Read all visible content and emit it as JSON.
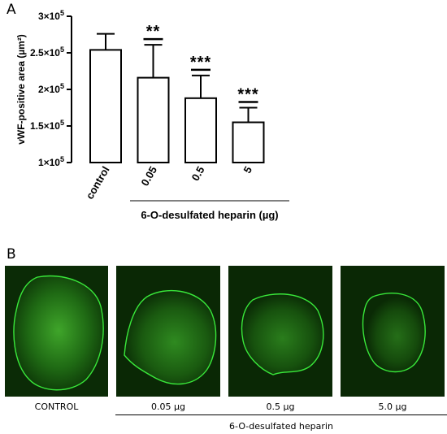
{
  "panel_a_label": "A",
  "panel_b_label": "B",
  "chart_data": {
    "type": "bar",
    "ylabel": "vWF-positive area (µm²)",
    "xlabel": "6-O-desulfated heparin (µg)",
    "categories": [
      "control",
      "0.05",
      "0.5",
      "5"
    ],
    "values": [
      254000,
      216000,
      188000,
      155000
    ],
    "error_upper": [
      276000,
      261000,
      219000,
      175000
    ],
    "significance": [
      "",
      "**",
      "***",
      "***"
    ],
    "ylim": [
      100000,
      300000
    ],
    "yticks": [
      {
        "value": 100000,
        "mant": "1×10",
        "exp": "5"
      },
      {
        "value": 150000,
        "mant": "1.5×10",
        "exp": "5"
      },
      {
        "value": 200000,
        "mant": "2×10",
        "exp": "5"
      },
      {
        "value": 250000,
        "mant": "2.5×10",
        "exp": "5"
      },
      {
        "value": 300000,
        "mant": "3×10",
        "exp": "5"
      }
    ],
    "grid": false,
    "bar_fill": "#ffffff",
    "bar_edge": "#000000"
  },
  "images": [
    {
      "caption": "CONTROL"
    },
    {
      "caption": "0.05 µg"
    },
    {
      "caption": "0.5 µg"
    },
    {
      "caption": "5.0 µg"
    }
  ],
  "image_group_label": "6-O-desulfated heparin",
  "colors": {
    "background_green": "#0a2a05",
    "outline_green": "#39e83a"
  }
}
